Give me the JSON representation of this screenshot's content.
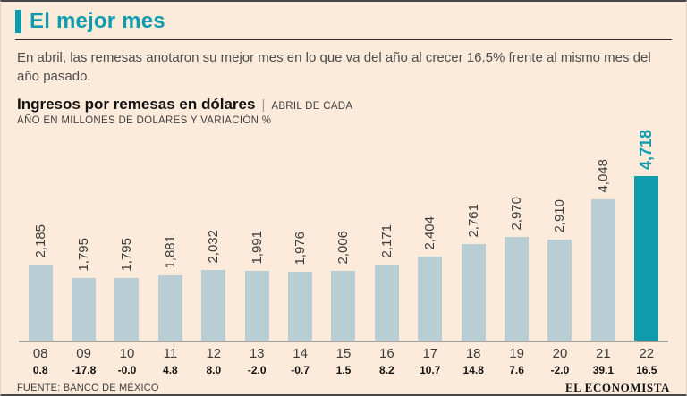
{
  "header": {
    "title": "El mejor mes",
    "intro": "En abril, las remesas anotaron su mejor mes en lo que va del año al crecer 16.5% frente al mismo mes del año pasado."
  },
  "chart_header": {
    "title": "Ingresos por remesas en dólares",
    "separator": "|",
    "subtitle_top": "ABRIL DE CADA",
    "subtitle_bottom": "AÑO EN MILLONES DE DÓLARES Y VARIACIÓN %"
  },
  "chart_data": {
    "type": "bar",
    "title": "Ingresos por remesas en dólares, abril de cada año, en millones de dólares y variación %",
    "categories": [
      "08",
      "09",
      "10",
      "11",
      "12",
      "13",
      "14",
      "15",
      "16",
      "17",
      "18",
      "19",
      "20",
      "21",
      "22"
    ],
    "values": [
      2185,
      1795,
      1795,
      1881,
      2032,
      1991,
      1976,
      2006,
      2171,
      2404,
      2761,
      2970,
      2910,
      4048,
      4718
    ],
    "value_labels": [
      "2,185",
      "1,795",
      "1,795",
      "1,881",
      "2,032",
      "1,991",
      "1,976",
      "2,006",
      "2,171",
      "2,404",
      "2,761",
      "2,970",
      "2,910",
      "4,048",
      "4,718"
    ],
    "variations": [
      "0.8",
      "-17.8",
      "-0.0",
      "4.8",
      "8.0",
      "-2.0",
      "-0.7",
      "1.5",
      "8.2",
      "10.7",
      "14.8",
      "7.6",
      "-2.0",
      "39.1",
      "16.5"
    ],
    "highlight_index": 14,
    "xlabel": "",
    "ylabel": "",
    "ylim": [
      0,
      4718
    ],
    "legend": "none",
    "grid": false
  },
  "footer": {
    "source": "FUENTE: BANCO DE MÉXICO",
    "brand": "EL ECONOMISTA"
  },
  "colors": {
    "background": "#fcebdb",
    "accent": "#0e9bac",
    "bar": "#b9cdd5",
    "text": "#3c3c3c"
  }
}
